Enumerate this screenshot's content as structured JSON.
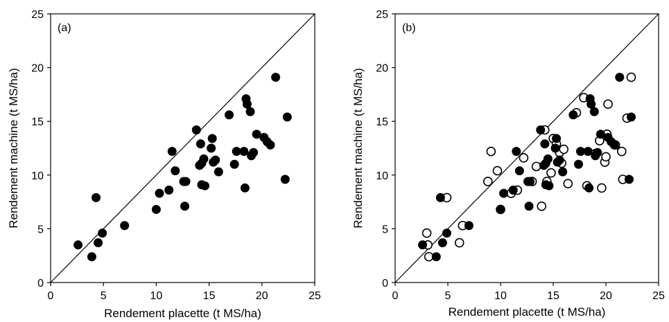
{
  "chart_data": [
    {
      "type": "scatter",
      "panel_label": "(a)",
      "xlabel": "Rendement placette (t MS/ha)",
      "ylabel": "Rendement machine (t MS/ha)",
      "xlim": [
        0,
        25
      ],
      "ylim": [
        0,
        25
      ],
      "xticks": [
        0,
        5,
        10,
        15,
        20,
        25
      ],
      "yticks": [
        0,
        5,
        10,
        15,
        20,
        25
      ],
      "reference_line": "1:1",
      "grid": false,
      "legend": "none",
      "series": [
        {
          "marker": "filled-circle",
          "color": "#000000",
          "points": [
            [
              2.6,
              3.5
            ],
            [
              3.9,
              2.4
            ],
            [
              4.3,
              7.9
            ],
            [
              4.5,
              3.7
            ],
            [
              4.9,
              4.6
            ],
            [
              7.0,
              5.3
            ],
            [
              10.0,
              6.8
            ],
            [
              10.3,
              8.3
            ],
            [
              11.2,
              8.6
            ],
            [
              11.5,
              12.2
            ],
            [
              11.8,
              10.4
            ],
            [
              12.6,
              9.4
            ],
            [
              12.8,
              9.4
            ],
            [
              12.7,
              7.1
            ],
            [
              13.8,
              14.2
            ],
            [
              14.2,
              12.9
            ],
            [
              14.1,
              10.9
            ],
            [
              14.3,
              11.1
            ],
            [
              14.5,
              11.5
            ],
            [
              14.3,
              9.1
            ],
            [
              14.6,
              9.0
            ],
            [
              15.2,
              12.5
            ],
            [
              15.3,
              13.4
            ],
            [
              15.4,
              11.2
            ],
            [
              15.6,
              11.4
            ],
            [
              15.9,
              10.3
            ],
            [
              16.9,
              15.6
            ],
            [
              17.4,
              11.0
            ],
            [
              17.6,
              12.2
            ],
            [
              18.3,
              12.2
            ],
            [
              18.4,
              8.8
            ],
            [
              18.5,
              17.1
            ],
            [
              18.6,
              16.6
            ],
            [
              18.9,
              15.9
            ],
            [
              19.0,
              11.8
            ],
            [
              19.2,
              12.1
            ],
            [
              19.5,
              13.8
            ],
            [
              20.2,
              13.5
            ],
            [
              20.5,
              13.1
            ],
            [
              20.8,
              12.8
            ],
            [
              21.3,
              19.1
            ],
            [
              22.2,
              9.6
            ],
            [
              22.4,
              15.4
            ]
          ]
        }
      ]
    },
    {
      "type": "scatter",
      "panel_label": "(b)",
      "xlabel": "Rendement  placette (t MS/ha)",
      "ylabel": "Rendement machine (t MS/ha)",
      "xlim": [
        0,
        25
      ],
      "ylim": [
        0,
        25
      ],
      "xticks": [
        0,
        5,
        10,
        15,
        20,
        25
      ],
      "yticks": [
        0,
        5,
        10,
        15,
        20,
        25
      ],
      "reference_line": "1:1",
      "grid": false,
      "legend": "none",
      "series": [
        {
          "marker": "filled-circle",
          "color": "#000000",
          "points": [
            [
              2.6,
              3.5
            ],
            [
              3.9,
              2.4
            ],
            [
              4.3,
              7.9
            ],
            [
              4.5,
              3.7
            ],
            [
              4.9,
              4.6
            ],
            [
              7.0,
              5.3
            ],
            [
              10.0,
              6.8
            ],
            [
              10.3,
              8.3
            ],
            [
              11.2,
              8.6
            ],
            [
              11.5,
              12.2
            ],
            [
              11.8,
              10.4
            ],
            [
              12.6,
              9.4
            ],
            [
              12.8,
              9.4
            ],
            [
              12.7,
              7.1
            ],
            [
              13.8,
              14.2
            ],
            [
              14.2,
              12.9
            ],
            [
              14.1,
              10.9
            ],
            [
              14.3,
              11.1
            ],
            [
              14.5,
              11.5
            ],
            [
              14.3,
              9.1
            ],
            [
              14.6,
              9.0
            ],
            [
              15.2,
              12.5
            ],
            [
              15.3,
              13.4
            ],
            [
              15.4,
              11.2
            ],
            [
              15.6,
              11.4
            ],
            [
              15.9,
              10.3
            ],
            [
              16.9,
              15.6
            ],
            [
              17.4,
              11.0
            ],
            [
              17.6,
              12.2
            ],
            [
              18.3,
              12.2
            ],
            [
              18.4,
              8.8
            ],
            [
              18.5,
              17.1
            ],
            [
              18.6,
              16.6
            ],
            [
              18.9,
              15.9
            ],
            [
              19.0,
              11.8
            ],
            [
              19.2,
              12.1
            ],
            [
              19.5,
              13.8
            ],
            [
              20.2,
              13.5
            ],
            [
              20.5,
              13.1
            ],
            [
              20.8,
              12.8
            ],
            [
              21.3,
              19.1
            ],
            [
              22.2,
              9.6
            ],
            [
              22.4,
              15.4
            ]
          ]
        },
        {
          "marker": "open-circle",
          "color": "#000000",
          "points": [
            [
              3.0,
              4.6
            ],
            [
              3.1,
              3.5
            ],
            [
              3.2,
              2.4
            ],
            [
              4.9,
              7.9
            ],
            [
              6.1,
              3.7
            ],
            [
              6.4,
              5.3
            ],
            [
              8.8,
              9.4
            ],
            [
              9.1,
              12.2
            ],
            [
              9.7,
              10.4
            ],
            [
              10.0,
              6.8
            ],
            [
              11.0,
              8.3
            ],
            [
              11.6,
              8.6
            ],
            [
              12.2,
              11.6
            ],
            [
              13.0,
              9.4
            ],
            [
              13.4,
              10.8
            ],
            [
              13.9,
              7.1
            ],
            [
              14.2,
              14.2
            ],
            [
              14.4,
              9.4
            ],
            [
              14.8,
              10.2
            ],
            [
              15.0,
              13.4
            ],
            [
              15.3,
              12.9
            ],
            [
              15.6,
              12.1
            ],
            [
              15.8,
              11.1
            ],
            [
              16.0,
              12.4
            ],
            [
              16.4,
              9.2
            ],
            [
              17.2,
              15.8
            ],
            [
              17.9,
              17.2
            ],
            [
              18.2,
              9.0
            ],
            [
              19.0,
              12.0
            ],
            [
              19.4,
              13.2
            ],
            [
              19.6,
              8.8
            ],
            [
              19.9,
              11.2
            ],
            [
              20.0,
              11.7
            ],
            [
              20.2,
              16.6
            ],
            [
              20.1,
              13.8
            ],
            [
              20.9,
              12.8
            ],
            [
              21.5,
              12.2
            ],
            [
              21.6,
              9.6
            ],
            [
              22.0,
              15.3
            ],
            [
              22.4,
              19.1
            ]
          ]
        }
      ]
    }
  ]
}
